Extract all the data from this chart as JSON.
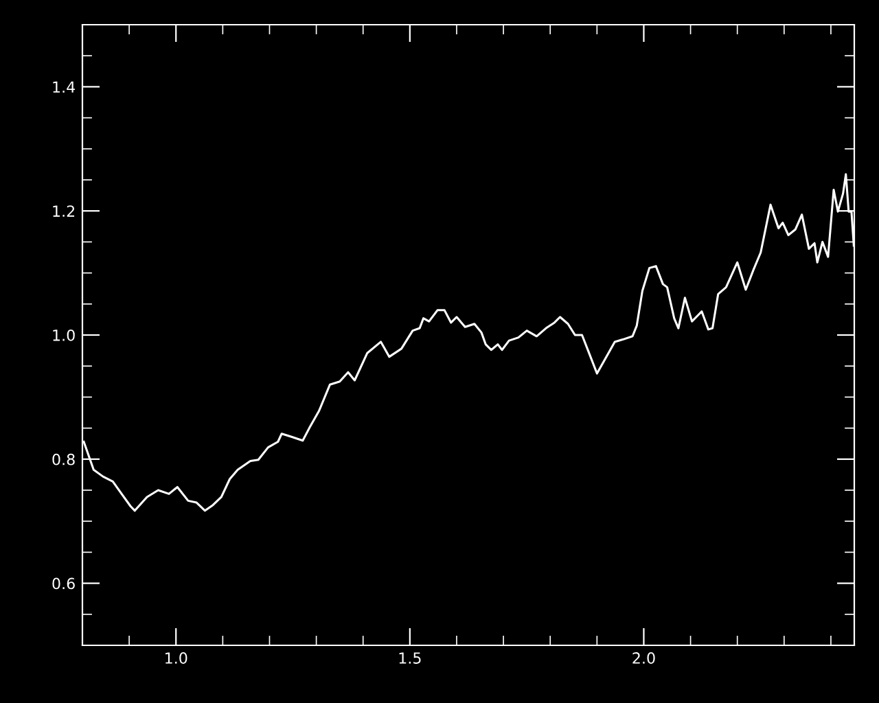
{
  "chart_data": {
    "type": "line",
    "xlim": [
      0.8,
      2.45
    ],
    "ylim": [
      0.5,
      1.5
    ],
    "xticks": [
      {
        "value": 1.0,
        "label": "1.0"
      },
      {
        "value": 1.5,
        "label": "1.5"
      },
      {
        "value": 2.0,
        "label": "2.0"
      }
    ],
    "yticks": [
      {
        "value": 0.6,
        "label": "0.6"
      },
      {
        "value": 0.8,
        "label": "0.8"
      },
      {
        "value": 1.0,
        "label": "1.0"
      },
      {
        "value": 1.2,
        "label": "1.2"
      },
      {
        "value": 1.4,
        "label": "1.4"
      }
    ],
    "grid": false,
    "marker": "none",
    "line_style": "solid",
    "series": [
      {
        "color": "#ffffff",
        "x": [
          0.803,
          0.824,
          0.844,
          0.865,
          0.882,
          0.903,
          0.912,
          0.938,
          0.962,
          0.985,
          1.003,
          1.026,
          1.044,
          1.062,
          1.079,
          1.097,
          1.115,
          1.132,
          1.159,
          1.176,
          1.197,
          1.218,
          1.226,
          1.247,
          1.271,
          1.285,
          1.306,
          1.329,
          1.35,
          1.368,
          1.382,
          1.409,
          1.438,
          1.456,
          1.482,
          1.506,
          1.521,
          1.529,
          1.541,
          1.559,
          1.574,
          1.588,
          1.6,
          1.618,
          1.638,
          1.653,
          1.662,
          1.674,
          1.688,
          1.697,
          1.712,
          1.732,
          1.75,
          1.771,
          1.791,
          1.809,
          1.821,
          1.838,
          1.853,
          1.868,
          1.882,
          1.9,
          1.918,
          1.938,
          1.956,
          1.976,
          1.985,
          1.997,
          2.012,
          2.026,
          2.041,
          2.05,
          2.065,
          2.074,
          2.088,
          2.103,
          2.124,
          2.138,
          2.147,
          2.159,
          2.176,
          2.2,
          2.218,
          2.235,
          2.25,
          2.271,
          2.288,
          2.297,
          2.309,
          2.324,
          2.338,
          2.353,
          2.365,
          2.371,
          2.382,
          2.394,
          2.406,
          2.415,
          2.426,
          2.432,
          2.438,
          2.444,
          2.449
        ],
        "values": [
          0.828,
          0.783,
          0.772,
          0.764,
          0.746,
          0.724,
          0.717,
          0.739,
          0.75,
          0.744,
          0.755,
          0.733,
          0.73,
          0.717,
          0.726,
          0.739,
          0.768,
          0.783,
          0.797,
          0.799,
          0.819,
          0.828,
          0.841,
          0.836,
          0.83,
          0.85,
          0.878,
          0.92,
          0.925,
          0.94,
          0.927,
          0.971,
          0.989,
          0.965,
          0.978,
          1.007,
          1.011,
          1.027,
          1.022,
          1.04,
          1.04,
          1.02,
          1.029,
          1.013,
          1.018,
          1.004,
          0.985,
          0.976,
          0.985,
          0.976,
          0.991,
          0.996,
          1.007,
          0.998,
          1.011,
          1.02,
          1.029,
          1.018,
          1.0,
          1.0,
          0.973,
          0.938,
          0.962,
          0.989,
          0.993,
          0.998,
          1.015,
          1.071,
          1.108,
          1.111,
          1.082,
          1.077,
          1.027,
          1.011,
          1.06,
          1.022,
          1.038,
          1.009,
          1.011,
          1.066,
          1.077,
          1.117,
          1.073,
          1.106,
          1.133,
          1.21,
          1.172,
          1.181,
          1.161,
          1.17,
          1.194,
          1.139,
          1.148,
          1.117,
          1.15,
          1.126,
          1.234,
          1.199,
          1.228,
          1.259,
          1.199,
          1.199,
          1.144
        ]
      }
    ]
  }
}
